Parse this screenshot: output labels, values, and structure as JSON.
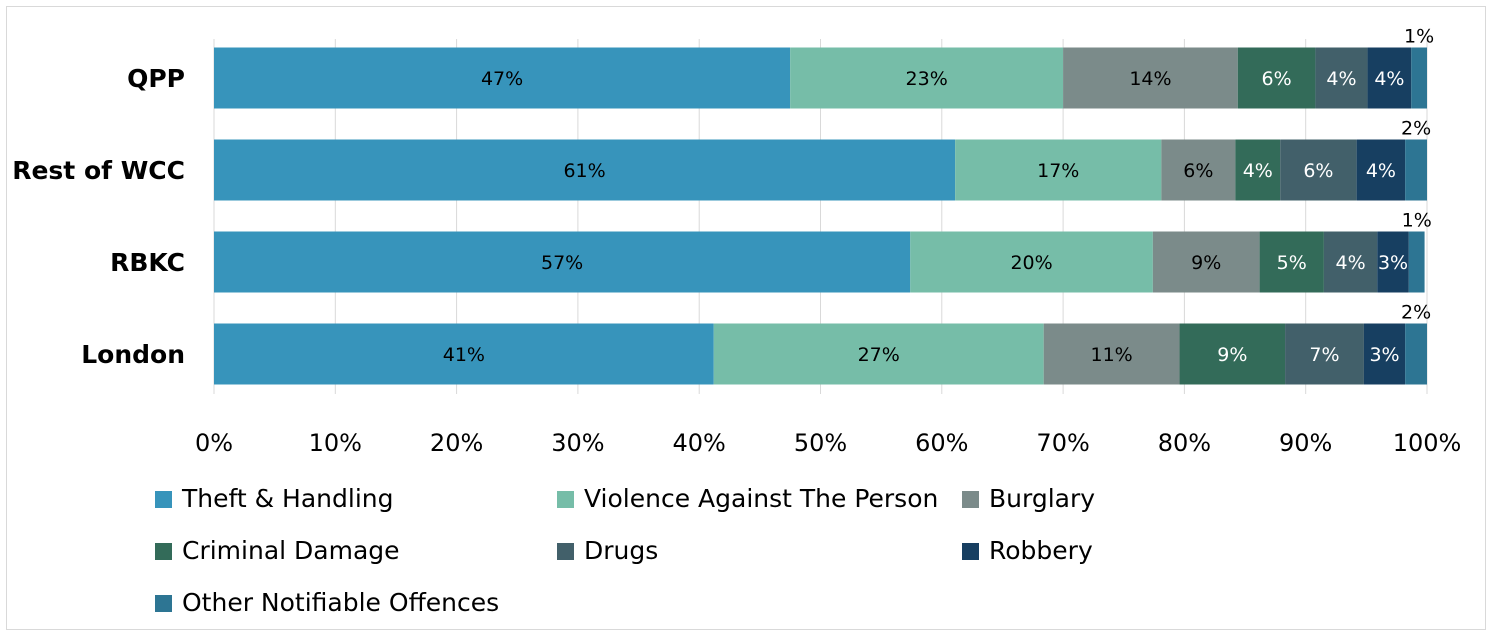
{
  "chart_data": {
    "type": "bar",
    "orientation": "horizontal",
    "stacked": true,
    "percent_scale": true,
    "categories": [
      "QPP",
      "Rest of WCC",
      "RBKC",
      "London"
    ],
    "xlim": [
      0,
      100
    ],
    "x_ticks": [
      "0%",
      "10%",
      "20%",
      "30%",
      "40%",
      "50%",
      "60%",
      "70%",
      "80%",
      "90%",
      "100%"
    ],
    "grid": "vertical",
    "legend_position": "bottom",
    "series": [
      {
        "name": "Theft & Handling",
        "color": "#3794bb",
        "values": [
          47.5,
          61.1,
          57.4,
          41.2
        ],
        "labels": [
          "47%",
          "61%",
          "57%",
          "41%"
        ]
      },
      {
        "name": "Violence Against The Person",
        "color": "#76bda8",
        "values": [
          22.5,
          17.0,
          20.0,
          27.2
        ],
        "labels": [
          "23%",
          "17%",
          "20%",
          "27%"
        ]
      },
      {
        "name": "Burglary",
        "color": "#7b8b8a",
        "values": [
          14.4,
          6.1,
          8.8,
          11.2
        ],
        "labels": [
          "14%",
          "6%",
          "9%",
          "11%"
        ]
      },
      {
        "name": "Criminal Damage",
        "color": "#336b59",
        "values": [
          6.4,
          3.7,
          5.3,
          8.7
        ],
        "labels": [
          "6%",
          "4%",
          "5%",
          "9%"
        ]
      },
      {
        "name": "Drugs",
        "color": "#42606a",
        "values": [
          4.3,
          6.3,
          4.4,
          6.5
        ],
        "labels": [
          "4%",
          "6%",
          "4%",
          "7%"
        ]
      },
      {
        "name": "Robbery",
        "color": "#173f61",
        "values": [
          3.6,
          4.0,
          2.6,
          3.4
        ],
        "labels": [
          "4%",
          "4%",
          "3%",
          "3%"
        ]
      },
      {
        "name": "Other Notifiable Offences",
        "color": "#2d7593",
        "values": [
          1.3,
          1.8,
          1.3,
          1.8
        ],
        "labels": [
          "1%",
          "2%",
          "1%",
          "2%"
        ]
      }
    ]
  }
}
